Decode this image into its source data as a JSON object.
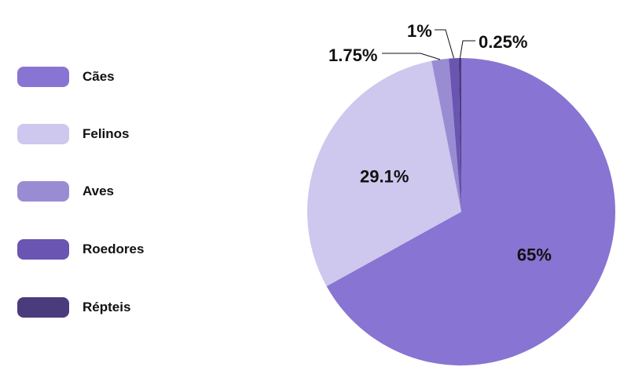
{
  "chart_data": {
    "type": "pie",
    "categories": [
      "Cães",
      "Felinos",
      "Aves",
      "Roedores",
      "Répteis"
    ],
    "values": [
      65,
      29.1,
      1.75,
      1,
      0.25
    ],
    "value_labels": [
      "65%",
      "29.1%",
      "1.75%",
      "1%",
      "0.25%"
    ],
    "colors": [
      "#8874d2",
      "#cec7ee",
      "#9a8cd3",
      "#6a55b2",
      "#4a3c7c"
    ],
    "legend_position": "left",
    "title": ""
  }
}
